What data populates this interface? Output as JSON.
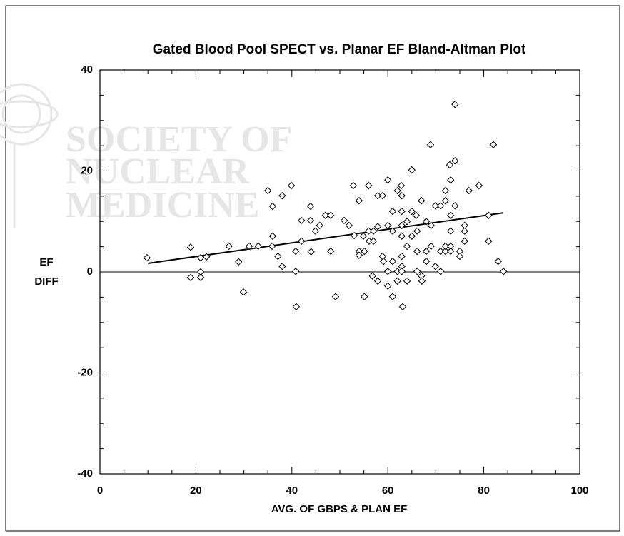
{
  "chart_data": {
    "type": "scatter",
    "title": "Gated Blood Pool SPECT vs. Planar EF Bland-Altman Plot",
    "xlabel": "AVG. OF GBPS & PLAN EF",
    "ylabel": [
      "EF",
      "DIFF"
    ],
    "watermark": [
      "SOCIETY OF",
      "NUCLEAR",
      "MEDICINE"
    ],
    "xlim": [
      0,
      100
    ],
    "ylim": [
      -40,
      40
    ],
    "xticks": [
      0,
      20,
      40,
      60,
      80,
      100
    ],
    "yticks": [
      -40,
      -20,
      0,
      20,
      40
    ],
    "xminorticks": [
      5,
      10,
      15,
      25,
      30,
      35,
      45,
      50,
      55,
      65,
      70,
      75,
      85,
      90,
      95
    ],
    "yminorticks": [
      -35,
      -30,
      -25,
      -15,
      -10,
      -5,
      5,
      10,
      15,
      25,
      30,
      35
    ],
    "reference_line": 0,
    "regression_line": {
      "x": [
        10,
        84
      ],
      "y": [
        1.7,
        11.7
      ]
    },
    "marker": "diamond",
    "color": "#000000",
    "x": [
      9.8,
      18.9,
      18.9,
      21,
      21,
      21,
      22.2,
      26.9,
      28.9,
      29.9,
      31.1,
      33,
      35,
      35.9,
      36,
      36,
      37.1,
      38,
      38,
      39.9,
      40.8,
      40.8,
      40.9,
      42,
      42,
      43.9,
      43.9,
      44,
      44.9,
      45.8,
      47,
      48.1,
      48.1,
      49.1,
      50.9,
      51.9,
      52.8,
      53,
      54,
      54,
      54,
      54.9,
      55.1,
      55.1,
      56,
      56,
      56.1,
      56.8,
      57,
      57,
      57.9,
      57.9,
      57.9,
      58.9,
      58.9,
      59.1,
      60,
      60,
      60,
      60,
      61,
      61,
      61,
      61,
      62,
      62,
      62,
      62.8,
      62.9,
      62.9,
      62.9,
      62.9,
      62.9,
      62.9,
      62.9,
      63.1,
      64,
      64,
      64,
      65,
      65,
      65,
      65.9,
      66.1,
      66.1,
      66.1,
      67,
      67,
      67.1,
      68,
      68,
      68,
      68.9,
      69,
      69,
      69.9,
      69.9,
      71,
      71,
      71,
      72,
      72,
      72,
      72,
      72.9,
      73.1,
      73.1,
      73.1,
      73.1,
      73.1,
      74,
      74,
      74,
      75,
      75,
      76,
      76,
      76,
      76.9,
      79,
      81,
      81,
      82,
      83,
      84.1
    ],
    "y": [
      2.8,
      4.9,
      -1.1,
      2.8,
      0,
      -1.1,
      3,
      5.1,
      2,
      -4,
      5.1,
      5.1,
      16.1,
      5.1,
      13,
      7.1,
      3.1,
      15.1,
      1.1,
      17.1,
      4.1,
      0.1,
      -6.9,
      10.2,
      6.1,
      13,
      10.2,
      4,
      8.1,
      9.2,
      11.2,
      11.2,
      4.1,
      -4.9,
      10.2,
      9.2,
      17.1,
      7.2,
      4.1,
      3.3,
      14.1,
      7.1,
      4.1,
      -4.9,
      17.1,
      8.1,
      6.1,
      -0.8,
      8.1,
      6.1,
      15.1,
      9,
      -1.8,
      15.1,
      3.1,
      2.1,
      18.2,
      9.2,
      0.1,
      -2.8,
      12,
      8.1,
      2.1,
      -4.9,
      16.1,
      0.1,
      -1.8,
      17.1,
      15.1,
      12,
      9.2,
      7.1,
      3.1,
      1.1,
      0.1,
      -6.9,
      10,
      5.1,
      -1.8,
      20.2,
      12,
      7.1,
      11.2,
      8.1,
      4.1,
      0.1,
      14.1,
      -0.8,
      -1.8,
      10,
      4.1,
      2.1,
      25.2,
      9.2,
      5.1,
      13.1,
      1.1,
      13.1,
      4.1,
      0.1,
      4.1,
      5.1,
      14.1,
      16.1,
      21.2,
      18.2,
      11.2,
      8.1,
      5.1,
      4.1,
      33.2,
      22,
      13.1,
      4.1,
      3.1,
      9.2,
      8.1,
      6.1,
      16.1,
      17.1,
      11.2,
      6.1,
      25.2,
      2.1,
      0.1
    ]
  }
}
